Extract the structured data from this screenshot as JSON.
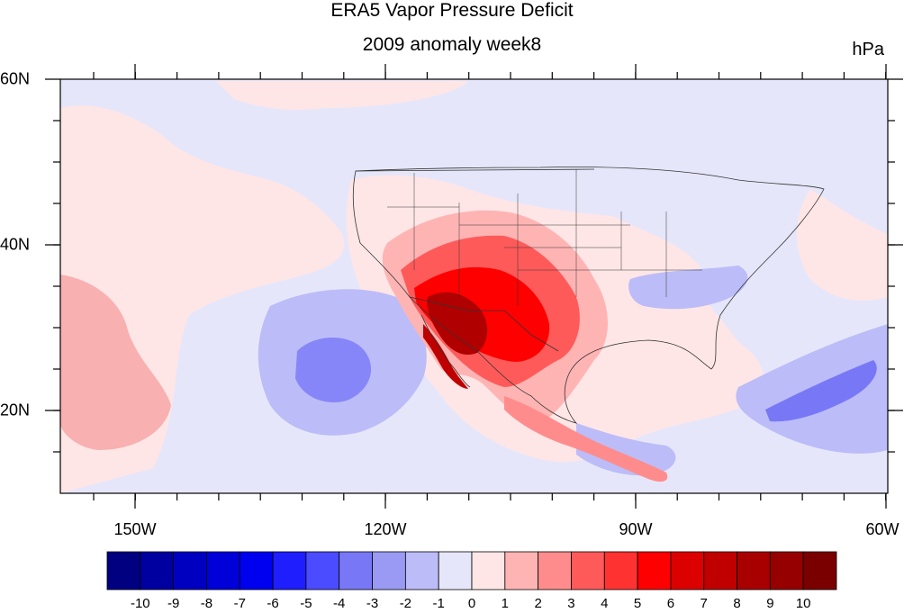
{
  "map": {
    "title": "ERA5 Vapor Pressure Deficit",
    "subtitle": "2009 anomaly week8",
    "units": "hPa",
    "lon_labels": [
      "150W",
      "120W",
      "90W",
      "60W"
    ],
    "lat_labels": [
      "60N",
      "40N",
      "20N"
    ],
    "extent": {
      "lon": [
        -159,
        -60
      ],
      "lat": [
        10,
        60
      ]
    },
    "colors": {
      "neg_light": "#e6e6fa",
      "neg_mid": "#a6a6f2",
      "neg_strong": "#6e6ee9",
      "pos_light": "#ffe6e6",
      "pos_mid": "#f7a6a6",
      "pos_strong": "#ff4d4d",
      "pos_max": "#8b0000"
    }
  },
  "colorbar": {
    "labels": [
      "-10",
      "-9",
      "-8",
      "-7",
      "-6",
      "-5",
      "-4",
      "-3",
      "-2",
      "-1",
      "0",
      "1",
      "2",
      "3",
      "4",
      "5",
      "6",
      "7",
      "8",
      "9",
      "10"
    ],
    "colors": [
      "#000080",
      "#0000a0",
      "#0000c0",
      "#0000d8",
      "#0000f0",
      "#1e1eff",
      "#4b4bff",
      "#7878f7",
      "#9a9af5",
      "#bcbcf8",
      "#e6e6fa",
      "#ffe6e6",
      "#ffb4b4",
      "#ff8c8c",
      "#ff5a5a",
      "#ff3232",
      "#ff0000",
      "#dd0000",
      "#c00000",
      "#a80000",
      "#960000",
      "#7a0000"
    ]
  }
}
